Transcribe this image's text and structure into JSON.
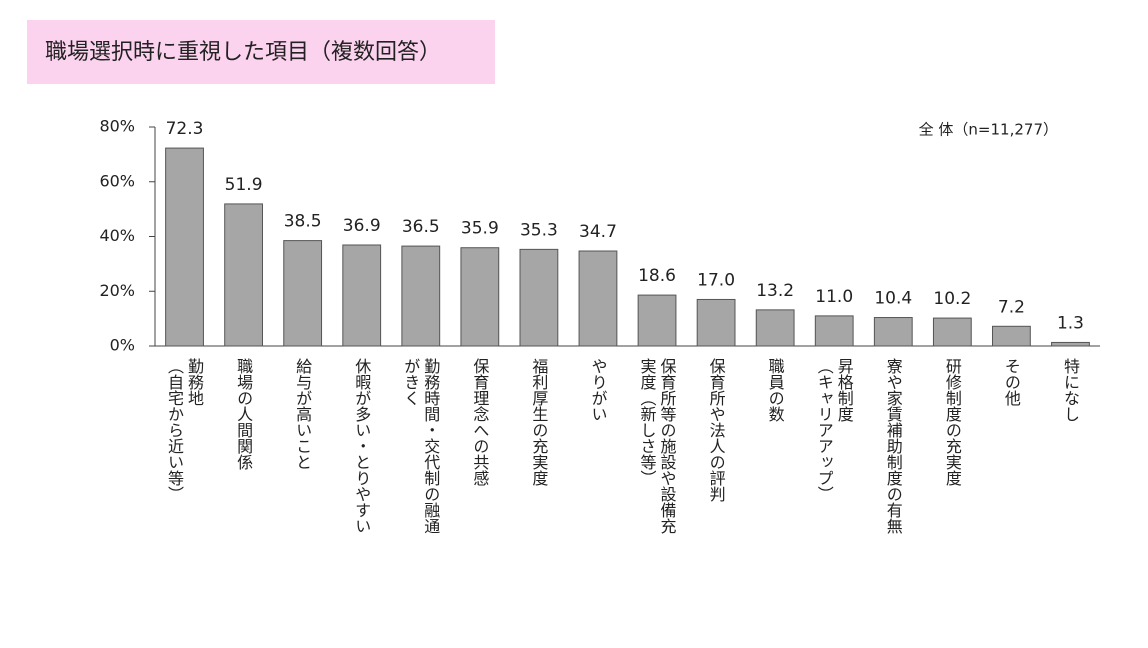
{
  "chart_data": {
    "type": "bar",
    "title": "職場選択時に重視した項目（複数回答）",
    "annotation": "全 体（n=11,277）",
    "categories": [
      [
        "勤務地",
        "（自宅から近い等）"
      ],
      [
        "職場の人間関係"
      ],
      [
        "給与が高いこと"
      ],
      [
        "休暇が多い・とりやすい"
      ],
      [
        "勤務時間・交代制の融通",
        "がきく"
      ],
      [
        "保育理念への共感"
      ],
      [
        "福利厚生の充実度"
      ],
      [
        "やりがい"
      ],
      [
        "保育所等の施設や設備充",
        "実度（新しさ等）"
      ],
      [
        "保育所や法人の評判"
      ],
      [
        "職員の数"
      ],
      [
        "昇格制度",
        "（キャリアアップ）"
      ],
      [
        "寮や家賃補助制度の有無"
      ],
      [
        "研修制度の充実度"
      ],
      [
        "その他"
      ],
      [
        "特になし"
      ]
    ],
    "values": [
      72.3,
      51.9,
      38.5,
      36.9,
      36.5,
      35.9,
      35.3,
      34.7,
      18.6,
      17.0,
      13.2,
      11.0,
      10.4,
      10.2,
      7.2,
      1.3
    ],
    "value_labels": [
      "72.3",
      "51.9",
      "38.5",
      "36.9",
      "36.5",
      "35.9",
      "35.3",
      "34.7",
      "18.6",
      "17.0",
      "13.2",
      "11.0",
      "10.4",
      "10.2",
      "7.2",
      "1.3"
    ],
    "color": "#a6a6a6",
    "ylim": [
      0,
      80
    ],
    "yticks": [
      {
        "value": 0,
        "label": "0%"
      },
      {
        "value": 20,
        "label": "20%"
      },
      {
        "value": 40,
        "label": "40%"
      },
      {
        "value": 60,
        "label": "60%"
      },
      {
        "value": 80,
        "label": "80%"
      }
    ],
    "grid": false
  }
}
